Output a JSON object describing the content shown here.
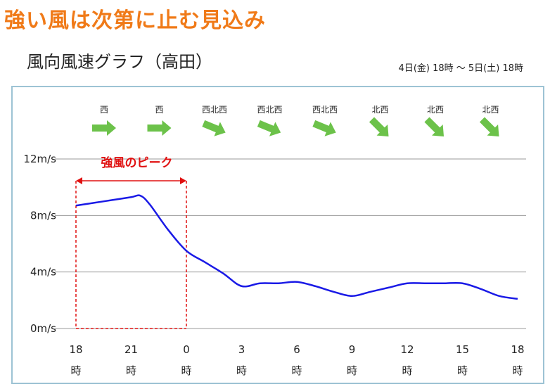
{
  "headline": "強い風は次第に止む見込み",
  "graph_title": "風向風速グラフ（高田）",
  "period": "4日(金) 18時 〜 5日(土) 18時",
  "colors": {
    "headline": "#f07a18",
    "line": "#1a1ae6",
    "arrow": "#6cc24a",
    "annotation": "#e01010",
    "grid": "#999999",
    "panel_border": "#9dc3d4"
  },
  "chart_data": {
    "type": "line",
    "title": "風向風速グラフ（高田）",
    "xlabel": "",
    "ylabel": "",
    "x_ticks": [
      {
        "value": 0,
        "label": "18",
        "unit": "時"
      },
      {
        "value": 3,
        "label": "21",
        "unit": "時"
      },
      {
        "value": 6,
        "label": "0",
        "unit": "時"
      },
      {
        "value": 9,
        "label": "3",
        "unit": "時"
      },
      {
        "value": 12,
        "label": "6",
        "unit": "時"
      },
      {
        "value": 15,
        "label": "9",
        "unit": "時"
      },
      {
        "value": 18,
        "label": "12",
        "unit": "時"
      },
      {
        "value": 21,
        "label": "15",
        "unit": "時"
      },
      {
        "value": 24,
        "label": "18",
        "unit": "時"
      }
    ],
    "y_ticks": [
      {
        "value": 0,
        "label": "0m/s"
      },
      {
        "value": 4,
        "label": "4m/s"
      },
      {
        "value": 8,
        "label": "8m/s"
      },
      {
        "value": 12,
        "label": "12m/s"
      }
    ],
    "xlim": [
      0,
      24
    ],
    "ylim": [
      0,
      12
    ],
    "grid": true,
    "series": [
      {
        "x": [
          0,
          1,
          2,
          3,
          3.5,
          4,
          5,
          6,
          7,
          8,
          9,
          10,
          11,
          12,
          13,
          14,
          15,
          16,
          17,
          18,
          19,
          20,
          21,
          22,
          23,
          24
        ],
        "values": [
          8.7,
          8.9,
          9.1,
          9.3,
          9.4,
          8.8,
          7.0,
          5.5,
          4.7,
          3.9,
          3.0,
          3.2,
          3.2,
          3.3,
          3.0,
          2.6,
          2.3,
          2.6,
          2.9,
          3.2,
          3.2,
          3.2,
          3.2,
          2.8,
          2.3,
          2.1
        ]
      }
    ],
    "wind_directions": [
      {
        "x": 0,
        "label": "西",
        "angle": 0
      },
      {
        "x": 3,
        "label": "西",
        "angle": 0
      },
      {
        "x": 6,
        "label": "西北西",
        "angle": 22.5
      },
      {
        "x": 9,
        "label": "西北西",
        "angle": 22.5
      },
      {
        "x": 12,
        "label": "西北西",
        "angle": 22.5
      },
      {
        "x": 15,
        "label": "北西",
        "angle": 45
      },
      {
        "x": 18,
        "label": "北西",
        "angle": 45
      },
      {
        "x": 21,
        "label": "北西",
        "angle": 45
      }
    ],
    "annotation": {
      "label": "強風のピーク",
      "x_start": 0,
      "x_end": 6
    }
  }
}
